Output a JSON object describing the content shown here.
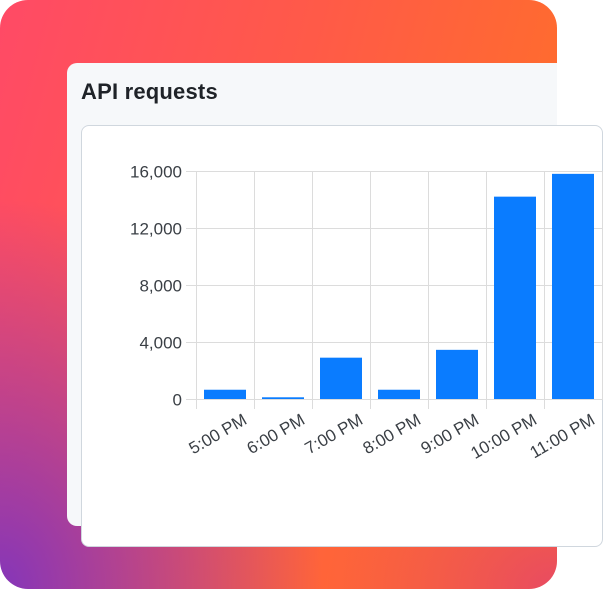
{
  "card": {
    "title": "API requests"
  },
  "colors": {
    "bar": "#0a7cff",
    "grid": "#dcdcdc",
    "axis_text": "#3a3f45"
  },
  "chart_data": {
    "type": "bar",
    "categories": [
      "5:00 PM",
      "6:00 PM",
      "7:00 PM",
      "8:00 PM",
      "9:00 PM",
      "10:00 PM",
      "11:00 PM"
    ],
    "values": [
      650,
      120,
      2900,
      650,
      3450,
      14200,
      15800
    ],
    "y_ticks": [
      "0",
      "4,000",
      "8,000",
      "12,000",
      "16,000"
    ],
    "ylim": [
      0,
      16000
    ],
    "grid": true
  }
}
